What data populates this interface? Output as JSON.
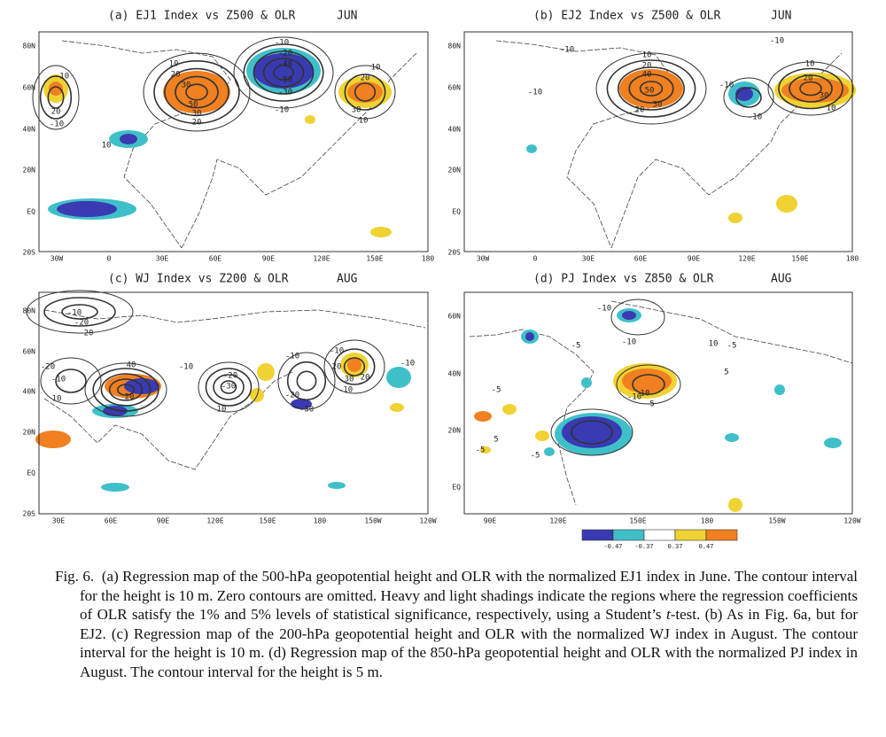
{
  "panels": [
    {
      "title": "(a) EJ1 Index vs Z500 & OLR",
      "month": "JUN",
      "xticks": [
        "30W",
        "0",
        "30E",
        "60E",
        "90E",
        "120E",
        "150E",
        "180"
      ],
      "yticks": [
        "80N",
        "60N",
        "40N",
        "20N",
        "EQ",
        "20S"
      ],
      "contour_labels": [
        "-10",
        "20",
        "-10",
        "10",
        "10",
        "20",
        "30",
        "50",
        "30",
        "20",
        "-10",
        "-20",
        "-40",
        "-50",
        "-30",
        "-10",
        "10",
        "20",
        "30",
        "10"
      ]
    },
    {
      "title": "(b) EJ2 Index vs Z500 & OLR",
      "month": "JUN",
      "xticks": [
        "30W",
        "0",
        "30E",
        "60E",
        "90E",
        "120E",
        "150E",
        "180"
      ],
      "yticks": [
        "80N",
        "60N",
        "40N",
        "20N",
        "EQ",
        "20S"
      ],
      "contour_labels": [
        "-10",
        "-10",
        "10",
        "20",
        "40",
        "50",
        "30",
        "20",
        "-10",
        "-10",
        "-10",
        "10",
        "20",
        "30",
        "10"
      ]
    },
    {
      "title": "(c) WJ Index vs Z200 & OLR",
      "month": "AUG",
      "xticks": [
        "30E",
        "60E",
        "90E",
        "120E",
        "150E",
        "180",
        "150W",
        "120W"
      ],
      "yticks": [
        "80N",
        "60N",
        "40N",
        "20N",
        "EQ",
        "20S"
      ],
      "contour_labels": [
        "-10",
        "-20",
        "20",
        "-20",
        "-10",
        "10",
        "40",
        "20",
        "-10",
        "10",
        "-20",
        "-30",
        "-10",
        "-20",
        "-30",
        "-10",
        "-10",
        "20",
        "30",
        "20",
        "-10"
      ]
    },
    {
      "title": "(d) PJ Index vs Z850 & OLR",
      "month": "AUG",
      "xticks": [
        "90E",
        "120E",
        "150E",
        "180",
        "150W",
        "120W"
      ],
      "yticks": [
        "60N",
        "40N",
        "20N",
        "EQ"
      ],
      "contour_labels": [
        "-10",
        "-10",
        "-5",
        "-10",
        "10",
        "5",
        "-5",
        "-5",
        "5",
        "-5",
        "-5",
        "10",
        "5"
      ]
    }
  ],
  "colorbar": {
    "ticks": [
      -0.47,
      -0.37,
      0.37,
      0.47
    ]
  },
  "caption": {
    "label": "Fig. 6.",
    "text_1": "(a) Regression map of the 500-hPa geopotential height and OLR with the normalized EJ1 index in June. The contour interval for the height is 10 m. Zero contours are omitted. Heavy and light shadings indicate the regions where the regression coefficients of OLR satisfy the 1% and 5% levels of statistical significance, respectively, using a Student’s ",
    "italic": "t",
    "text_2": "-test. (b) As in Fig. 6a, but for EJ2. (c) Regression map of the 200-hPa geopotential height and OLR with the normalized WJ index in August. The contour interval for the height is 10 m. (d) Regression map of the 850-hPa geopotential height and OLR with the normalized PJ index in August. The contour interval for the height is 5 m."
  }
}
